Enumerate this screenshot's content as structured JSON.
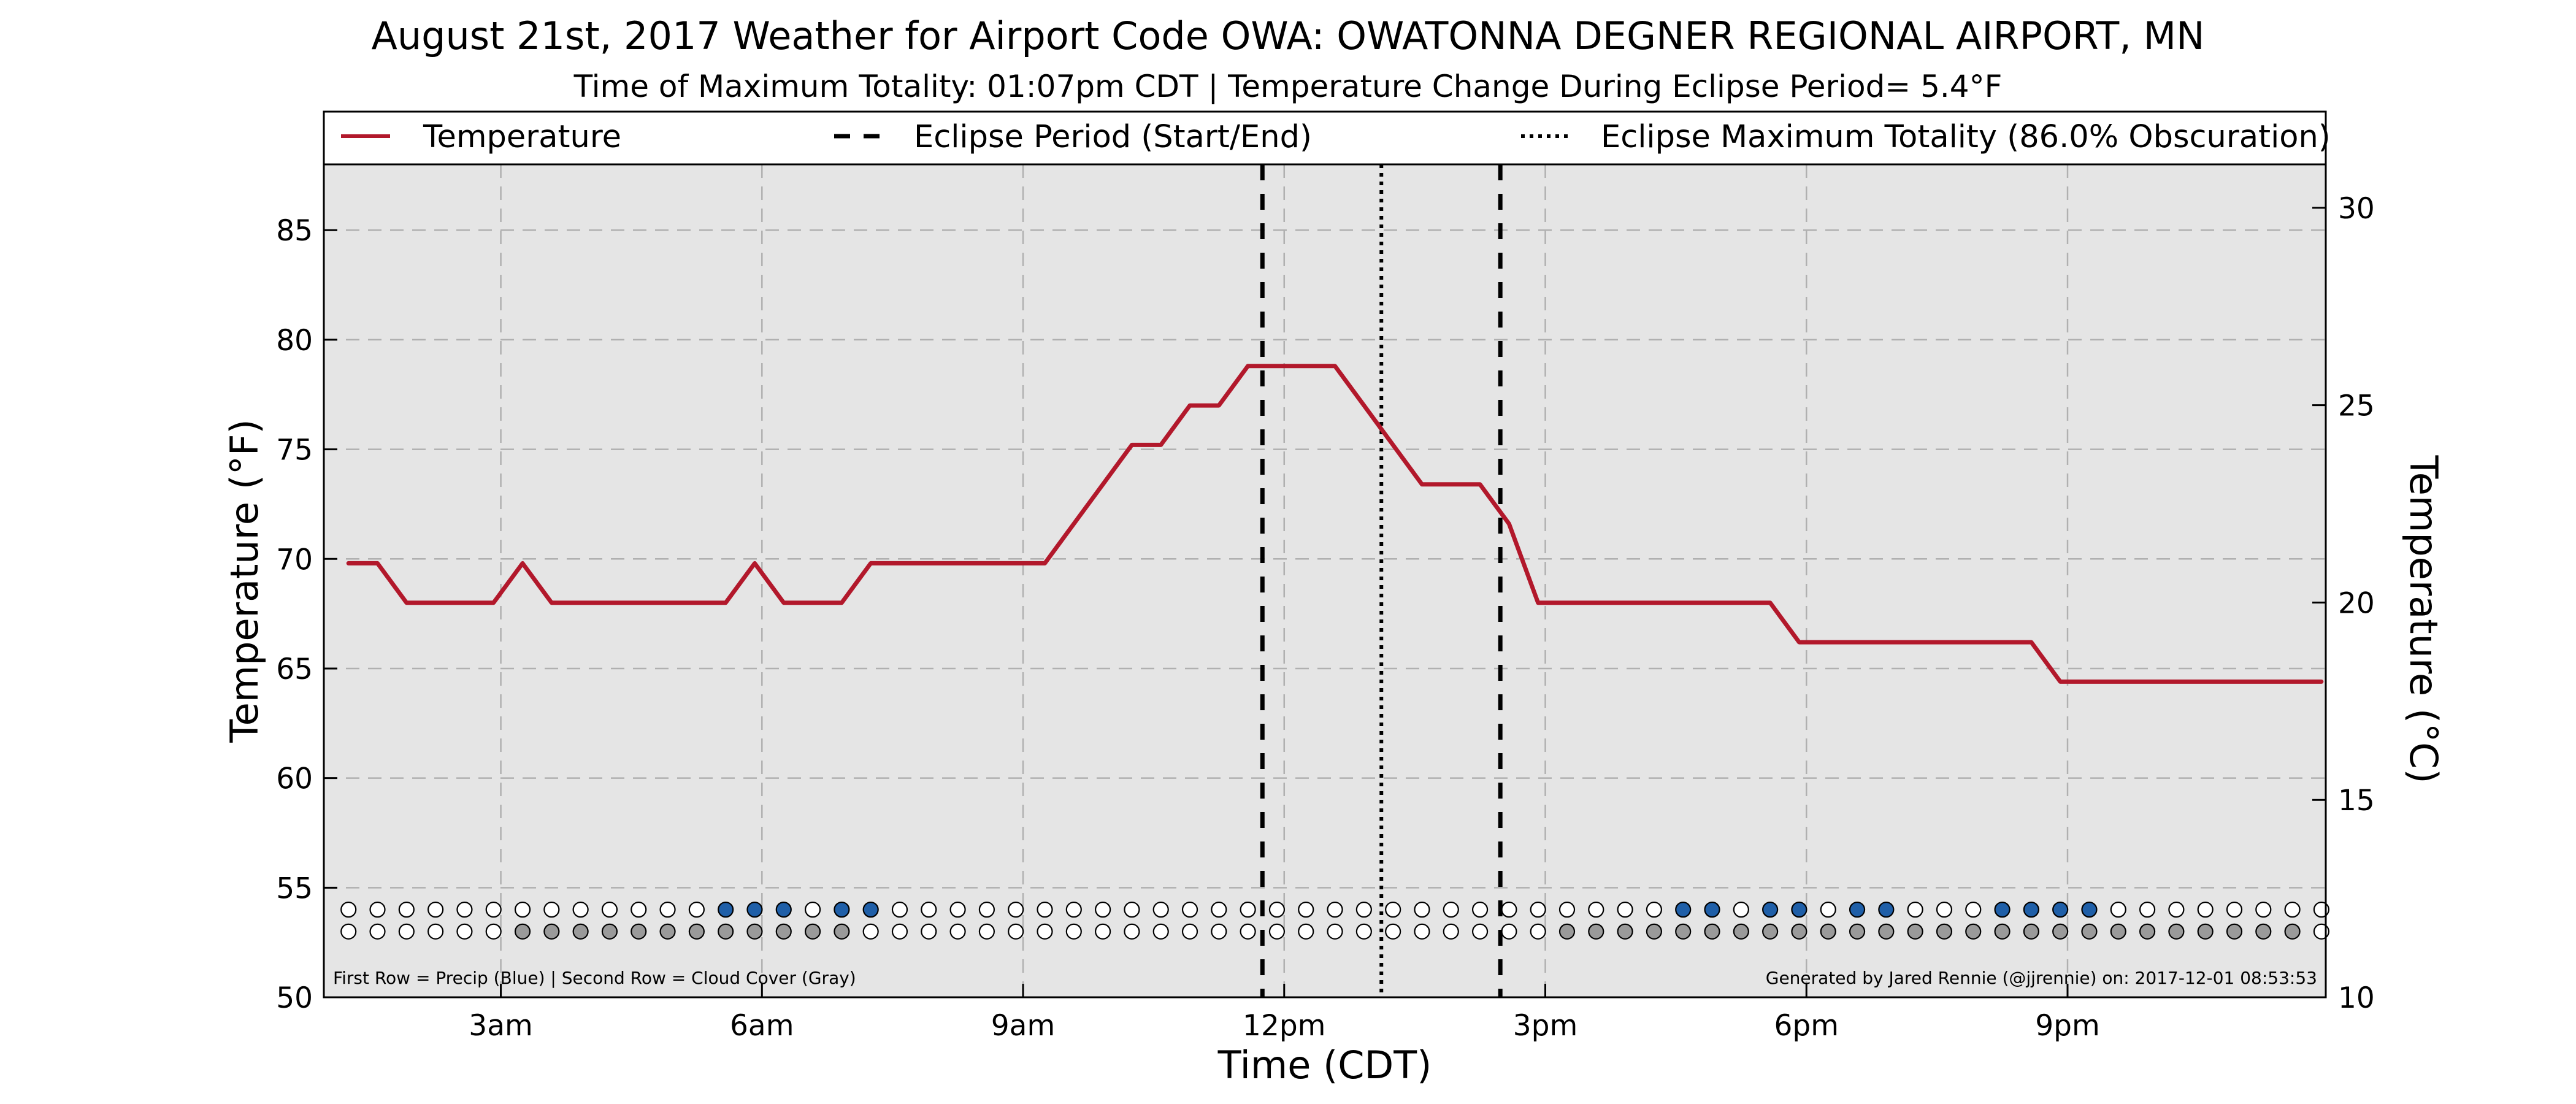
{
  "colors": {
    "temperature_line": "#b2182b",
    "precip_dot": "#1f5fa8",
    "cloud_dot": "#9a9a9a",
    "empty_dot": "#ffffff",
    "plot_background": "#e5e5e5",
    "gridline": "#b0b0b0",
    "eclipse_lines": "#000000"
  },
  "chart_data": {
    "type": "line",
    "title": "August 21st, 2017 Weather for Airport Code OWA: OWATONNA DEGNER REGIONAL AIRPORT, MN",
    "subtitle": "Time of Maximum Totality: 01:07pm CDT | Temperature Change During Eclipse Period= 5.4°F",
    "xlabel": "Time (CDT)",
    "ylabel": "Temperature (°F)",
    "ylabel_right": "Temperature (°C)",
    "xlim": [
      "00:58",
      "23:58"
    ],
    "ylim": [
      50,
      88
    ],
    "ylim_right": [
      10,
      31.1
    ],
    "grid": true,
    "x_ticks": [
      {
        "time": "03:00",
        "label": "3am"
      },
      {
        "time": "06:00",
        "label": "6am"
      },
      {
        "time": "09:00",
        "label": "9am"
      },
      {
        "time": "12:00",
        "label": "12pm"
      },
      {
        "time": "15:00",
        "label": "3pm"
      },
      {
        "time": "18:00",
        "label": "6pm"
      },
      {
        "time": "21:00",
        "label": "9pm"
      }
    ],
    "y_ticks": [
      50,
      55,
      60,
      65,
      70,
      75,
      80,
      85
    ],
    "y_ticks_right": [
      10,
      15,
      20,
      25,
      30
    ],
    "legend": {
      "placement": "top (above plot)",
      "entries": [
        {
          "label": "Temperature",
          "style": "solid"
        },
        {
          "label": "Eclipse Period (Start/End)",
          "style": "dashed"
        },
        {
          "label": "Eclipse Maximum Totality (86.0% Obscuration)",
          "style": "dotted"
        }
      ]
    },
    "series": [
      {
        "name": "Temperature",
        "times": [
          "01:15",
          "01:35",
          "01:55",
          "02:15",
          "02:35",
          "02:55",
          "03:15",
          "03:35",
          "03:55",
          "04:15",
          "04:35",
          "04:55",
          "05:15",
          "05:35",
          "05:55",
          "06:15",
          "06:35",
          "06:55",
          "07:15",
          "07:35",
          "07:55",
          "08:15",
          "08:35",
          "08:55",
          "09:15",
          "09:35",
          "09:55",
          "10:15",
          "10:35",
          "10:55",
          "11:15",
          "11:35",
          "11:55",
          "12:15",
          "12:35",
          "12:55",
          "13:15",
          "13:35",
          "13:55",
          "14:15",
          "14:35",
          "14:55",
          "15:15",
          "15:35",
          "15:55",
          "16:15",
          "16:35",
          "16:55",
          "17:15",
          "17:35",
          "17:55",
          "18:15",
          "18:35",
          "18:55",
          "19:15",
          "19:35",
          "19:55",
          "20:15",
          "20:35",
          "20:55",
          "21:15",
          "21:35",
          "21:55",
          "22:15",
          "22:35",
          "22:55",
          "23:15",
          "23:35",
          "23:55"
        ],
        "values": [
          69.8,
          69.8,
          68.0,
          68.0,
          68.0,
          68.0,
          69.8,
          68.0,
          68.0,
          68.0,
          68.0,
          68.0,
          68.0,
          68.0,
          69.8,
          68.0,
          68.0,
          68.0,
          69.8,
          69.8,
          69.8,
          69.8,
          69.8,
          69.8,
          69.8,
          71.6,
          73.4,
          75.2,
          75.2,
          77.0,
          77.0,
          78.8,
          78.8,
          78.8,
          78.8,
          77.0,
          75.2,
          73.4,
          73.4,
          73.4,
          71.6,
          68.0,
          68.0,
          68.0,
          68.0,
          68.0,
          68.0,
          68.0,
          68.0,
          68.0,
          66.2,
          66.2,
          66.2,
          66.2,
          66.2,
          66.2,
          66.2,
          66.2,
          66.2,
          64.4,
          64.4,
          64.4,
          64.4,
          64.4,
          64.4,
          64.4,
          64.4,
          64.4,
          64.4
        ]
      }
    ],
    "eclipse_start": "11:45",
    "eclipse_max": "13:07",
    "eclipse_end": "14:29",
    "dot_rows": {
      "start_time": "01:15",
      "interval_minutes": 20,
      "precip_row": "0000000000000111011000000000000000000000000000110110110001111000000000000000000000000000000000000",
      "cloud_row": "00000011111111111100000000000000000000000011111111111111111111111111000000000000000000000000000",
      "first_row_value": 54,
      "second_row_value": 53
    },
    "footnote_left": "First Row = Precip (Blue) | Second Row = Cloud Cover (Gray)",
    "footnote_right": "Generated by Jared Rennie (@jjrennie) on: 2017-12-01 08:53:53"
  }
}
